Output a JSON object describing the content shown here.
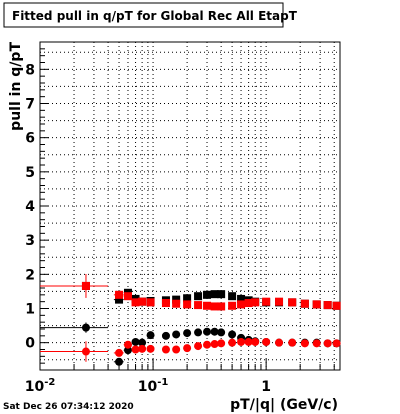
{
  "title": "Fitted pull in q/pT for Global Rec All EtapT",
  "timestamp": "Sat Dec 26 07:34:12 2020",
  "colors": {
    "black_series": "#000000",
    "red_series": "#ff0000",
    "grid": "#000000"
  },
  "chart_data": {
    "type": "scatter",
    "title": "Fitted pull in q/pT for Global Rec All EtapT",
    "xlabel": "pT/|q| (GeV/c)",
    "ylabel": "pull in q/pT",
    "x_scale": "log",
    "xlim": [
      0.01,
      4.5
    ],
    "ylim": [
      -0.8,
      8.8
    ],
    "grid": true,
    "x_ticks": [
      {
        "value": 0.01,
        "label": "10",
        "sup": "-2"
      },
      {
        "value": 0.1,
        "label": "10",
        "sup": "-1"
      },
      {
        "value": 1,
        "label": "1",
        "sup": ""
      }
    ],
    "y_ticks": [
      {
        "value": 0,
        "label": "0"
      },
      {
        "value": 1,
        "label": "1"
      },
      {
        "value": 2,
        "label": "2"
      },
      {
        "value": 3,
        "label": "3"
      },
      {
        "value": 4,
        "label": "4"
      },
      {
        "value": 5,
        "label": "5"
      },
      {
        "value": 6,
        "label": "6"
      },
      {
        "value": 7,
        "label": "7"
      },
      {
        "value": 8,
        "label": "8"
      }
    ],
    "series": [
      {
        "color": "#000000",
        "marker": "square",
        "points": [
          {
            "x": 0.0255,
            "xlo": 0.01,
            "xhi": 0.04,
            "y": 1.66,
            "yerr": 0.1
          },
          {
            "x": 0.05,
            "xlo": 0.045,
            "xhi": 0.055,
            "y": 1.26,
            "yerr": 0.07
          },
          {
            "x": 0.06,
            "xlo": 0.055,
            "xhi": 0.065,
            "y": 1.46,
            "yerr": 0.06
          },
          {
            "x": 0.07,
            "xlo": 0.065,
            "xhi": 0.075,
            "y": 1.28,
            "yerr": 0.05
          },
          {
            "x": 0.08,
            "xlo": 0.075,
            "xhi": 0.085,
            "y": 1.2,
            "yerr": 0.05
          },
          {
            "x": 0.095,
            "xlo": 0.09,
            "xhi": 0.1,
            "y": 1.22,
            "yerr": 0.04
          },
          {
            "x": 0.13,
            "xlo": 0.12,
            "xhi": 0.14,
            "y": 1.24,
            "yerr": 0.03
          },
          {
            "x": 0.16,
            "xlo": 0.15,
            "xhi": 0.17,
            "y": 1.26,
            "yerr": 0.03
          },
          {
            "x": 0.2,
            "xlo": 0.19,
            "xhi": 0.21,
            "y": 1.3,
            "yerr": 0.03
          },
          {
            "x": 0.25,
            "xlo": 0.24,
            "xhi": 0.26,
            "y": 1.36,
            "yerr": 0.03
          },
          {
            "x": 0.3,
            "xlo": 0.29,
            "xhi": 0.31,
            "y": 1.4,
            "yerr": 0.03
          },
          {
            "x": 0.35,
            "xlo": 0.34,
            "xhi": 0.36,
            "y": 1.42,
            "yerr": 0.03
          },
          {
            "x": 0.4,
            "xlo": 0.39,
            "xhi": 0.41,
            "y": 1.42,
            "yerr": 0.03
          },
          {
            "x": 0.5,
            "xlo": 0.48,
            "xhi": 0.52,
            "y": 1.36,
            "yerr": 0.03
          },
          {
            "x": 0.6,
            "xlo": 0.58,
            "xhi": 0.62,
            "y": 1.28,
            "yerr": 0.03
          },
          {
            "x": 0.7,
            "xlo": 0.68,
            "xhi": 0.72,
            "y": 1.24,
            "yerr": 0.03
          },
          {
            "x": 0.8,
            "xlo": 0.78,
            "xhi": 0.82,
            "y": 1.2,
            "yerr": 0.03
          },
          {
            "x": 1.0,
            "xlo": 0.96,
            "xhi": 1.04,
            "y": 1.18,
            "yerr": 0.03
          },
          {
            "x": 1.3,
            "xlo": 1.25,
            "xhi": 1.35,
            "y": 1.18,
            "yerr": 0.03
          },
          {
            "x": 1.7,
            "xlo": 1.6,
            "xhi": 1.8,
            "y": 1.18,
            "yerr": 0.03
          },
          {
            "x": 2.2,
            "xlo": 2.1,
            "xhi": 2.3,
            "y": 1.14,
            "yerr": 0.03
          },
          {
            "x": 2.8,
            "xlo": 2.7,
            "xhi": 2.9,
            "y": 1.12,
            "yerr": 0.03
          },
          {
            "x": 3.5,
            "xlo": 3.4,
            "xhi": 3.6,
            "y": 1.1,
            "yerr": 0.03
          },
          {
            "x": 4.2,
            "xlo": 4.0,
            "xhi": 4.4,
            "y": 1.08,
            "yerr": 0.03
          }
        ]
      },
      {
        "color": "#ff0000",
        "marker": "square",
        "points": [
          {
            "x": 0.0255,
            "xlo": 0.01,
            "xhi": 0.04,
            "y": 1.66,
            "yerr": 0.35
          },
          {
            "x": 0.05,
            "xlo": 0.045,
            "xhi": 0.055,
            "y": 1.4,
            "yerr": 0.08
          },
          {
            "x": 0.06,
            "xlo": 0.055,
            "xhi": 0.065,
            "y": 1.36,
            "yerr": 0.07
          },
          {
            "x": 0.07,
            "xlo": 0.065,
            "xhi": 0.075,
            "y": 1.18,
            "yerr": 0.06
          },
          {
            "x": 0.08,
            "xlo": 0.075,
            "xhi": 0.085,
            "y": 1.2,
            "yerr": 0.05
          },
          {
            "x": 0.095,
            "xlo": 0.09,
            "xhi": 0.1,
            "y": 1.18,
            "yerr": 0.04
          },
          {
            "x": 0.13,
            "xlo": 0.12,
            "xhi": 0.14,
            "y": 1.16,
            "yerr": 0.03
          },
          {
            "x": 0.16,
            "xlo": 0.15,
            "xhi": 0.17,
            "y": 1.14,
            "yerr": 0.03
          },
          {
            "x": 0.2,
            "xlo": 0.19,
            "xhi": 0.21,
            "y": 1.12,
            "yerr": 0.03
          },
          {
            "x": 0.25,
            "xlo": 0.24,
            "xhi": 0.26,
            "y": 1.1,
            "yerr": 0.03
          },
          {
            "x": 0.3,
            "xlo": 0.29,
            "xhi": 0.31,
            "y": 1.08,
            "yerr": 0.03
          },
          {
            "x": 0.35,
            "xlo": 0.34,
            "xhi": 0.36,
            "y": 1.06,
            "yerr": 0.03
          },
          {
            "x": 0.4,
            "xlo": 0.39,
            "xhi": 0.41,
            "y": 1.06,
            "yerr": 0.03
          },
          {
            "x": 0.5,
            "xlo": 0.48,
            "xhi": 0.52,
            "y": 1.08,
            "yerr": 0.03
          },
          {
            "x": 0.6,
            "xlo": 0.58,
            "xhi": 0.62,
            "y": 1.12,
            "yerr": 0.03
          },
          {
            "x": 0.7,
            "xlo": 0.68,
            "xhi": 0.72,
            "y": 1.16,
            "yerr": 0.03
          },
          {
            "x": 0.8,
            "xlo": 0.78,
            "xhi": 0.82,
            "y": 1.18,
            "yerr": 0.03
          },
          {
            "x": 1.0,
            "xlo": 0.96,
            "xhi": 1.04,
            "y": 1.2,
            "yerr": 0.03
          },
          {
            "x": 1.3,
            "xlo": 1.25,
            "xhi": 1.35,
            "y": 1.2,
            "yerr": 0.03
          },
          {
            "x": 1.7,
            "xlo": 1.6,
            "xhi": 1.8,
            "y": 1.18,
            "yerr": 0.03
          },
          {
            "x": 2.2,
            "xlo": 2.1,
            "xhi": 2.3,
            "y": 1.14,
            "yerr": 0.03
          },
          {
            "x": 2.8,
            "xlo": 2.7,
            "xhi": 2.9,
            "y": 1.12,
            "yerr": 0.03
          },
          {
            "x": 3.5,
            "xlo": 3.4,
            "xhi": 3.6,
            "y": 1.1,
            "yerr": 0.03
          },
          {
            "x": 4.2,
            "xlo": 4.0,
            "xhi": 4.4,
            "y": 1.08,
            "yerr": 0.03
          }
        ]
      },
      {
        "color": "#000000",
        "marker": "circle",
        "points": [
          {
            "x": 0.0255,
            "xlo": 0.01,
            "xhi": 0.04,
            "y": 0.44,
            "yerr": 0.15
          },
          {
            "x": 0.05,
            "xlo": 0.045,
            "xhi": 0.055,
            "y": -0.56,
            "yerr": 0.1
          },
          {
            "x": 0.06,
            "xlo": 0.055,
            "xhi": 0.065,
            "y": -0.22,
            "yerr": 0.08
          },
          {
            "x": 0.07,
            "xlo": 0.065,
            "xhi": 0.075,
            "y": 0.02,
            "yerr": 0.06
          },
          {
            "x": 0.08,
            "xlo": 0.075,
            "xhi": 0.085,
            "y": 0.0,
            "yerr": 0.05
          },
          {
            "x": 0.095,
            "xlo": 0.09,
            "xhi": 0.1,
            "y": 0.22,
            "yerr": 0.04
          },
          {
            "x": 0.13,
            "xlo": 0.12,
            "xhi": 0.14,
            "y": 0.2,
            "yerr": 0.03
          },
          {
            "x": 0.16,
            "xlo": 0.15,
            "xhi": 0.17,
            "y": 0.24,
            "yerr": 0.03
          },
          {
            "x": 0.2,
            "xlo": 0.19,
            "xhi": 0.21,
            "y": 0.28,
            "yerr": 0.03
          },
          {
            "x": 0.25,
            "xlo": 0.24,
            "xhi": 0.26,
            "y": 0.3,
            "yerr": 0.03
          },
          {
            "x": 0.3,
            "xlo": 0.29,
            "xhi": 0.31,
            "y": 0.32,
            "yerr": 0.03
          },
          {
            "x": 0.35,
            "xlo": 0.34,
            "xhi": 0.36,
            "y": 0.32,
            "yerr": 0.03
          },
          {
            "x": 0.4,
            "xlo": 0.39,
            "xhi": 0.41,
            "y": 0.3,
            "yerr": 0.03
          },
          {
            "x": 0.5,
            "xlo": 0.48,
            "xhi": 0.52,
            "y": 0.24,
            "yerr": 0.03
          },
          {
            "x": 0.6,
            "xlo": 0.58,
            "xhi": 0.62,
            "y": 0.14,
            "yerr": 0.03
          },
          {
            "x": 0.7,
            "xlo": 0.68,
            "xhi": 0.72,
            "y": 0.08,
            "yerr": 0.03
          },
          {
            "x": 0.8,
            "xlo": 0.78,
            "xhi": 0.82,
            "y": 0.04,
            "yerr": 0.03
          },
          {
            "x": 1.0,
            "xlo": 0.96,
            "xhi": 1.04,
            "y": 0.02,
            "yerr": 0.03
          },
          {
            "x": 1.3,
            "xlo": 1.25,
            "xhi": 1.35,
            "y": 0.0,
            "yerr": 0.03
          },
          {
            "x": 1.7,
            "xlo": 1.6,
            "xhi": 1.8,
            "y": 0.0,
            "yerr": 0.03
          },
          {
            "x": 2.2,
            "xlo": 2.1,
            "xhi": 2.3,
            "y": 0.0,
            "yerr": 0.03
          },
          {
            "x": 2.8,
            "xlo": 2.7,
            "xhi": 2.9,
            "y": 0.0,
            "yerr": 0.03
          },
          {
            "x": 3.5,
            "xlo": 3.4,
            "xhi": 3.6,
            "y": -0.02,
            "yerr": 0.03
          },
          {
            "x": 4.2,
            "xlo": 4.0,
            "xhi": 4.4,
            "y": -0.02,
            "yerr": 0.03
          }
        ]
      },
      {
        "color": "#ff0000",
        "marker": "circle",
        "points": [
          {
            "x": 0.0255,
            "xlo": 0.01,
            "xhi": 0.04,
            "y": -0.26,
            "yerr": 0.3
          },
          {
            "x": 0.05,
            "xlo": 0.045,
            "xhi": 0.055,
            "y": -0.3,
            "yerr": 0.08
          },
          {
            "x": 0.06,
            "xlo": 0.055,
            "xhi": 0.065,
            "y": -0.06,
            "yerr": 0.07
          },
          {
            "x": 0.07,
            "xlo": 0.065,
            "xhi": 0.075,
            "y": -0.2,
            "yerr": 0.06
          },
          {
            "x": 0.08,
            "xlo": 0.075,
            "xhi": 0.085,
            "y": -0.18,
            "yerr": 0.05
          },
          {
            "x": 0.095,
            "xlo": 0.09,
            "xhi": 0.1,
            "y": -0.18,
            "yerr": 0.04
          },
          {
            "x": 0.13,
            "xlo": 0.12,
            "xhi": 0.14,
            "y": -0.2,
            "yerr": 0.03
          },
          {
            "x": 0.16,
            "xlo": 0.15,
            "xhi": 0.17,
            "y": -0.2,
            "yerr": 0.03
          },
          {
            "x": 0.2,
            "xlo": 0.19,
            "xhi": 0.21,
            "y": -0.16,
            "yerr": 0.03
          },
          {
            "x": 0.25,
            "xlo": 0.24,
            "xhi": 0.26,
            "y": -0.1,
            "yerr": 0.03
          },
          {
            "x": 0.3,
            "xlo": 0.29,
            "xhi": 0.31,
            "y": -0.06,
            "yerr": 0.03
          },
          {
            "x": 0.35,
            "xlo": 0.34,
            "xhi": 0.36,
            "y": -0.04,
            "yerr": 0.03
          },
          {
            "x": 0.4,
            "xlo": 0.39,
            "xhi": 0.41,
            "y": -0.02,
            "yerr": 0.03
          },
          {
            "x": 0.5,
            "xlo": 0.48,
            "xhi": 0.52,
            "y": 0.0,
            "yerr": 0.03
          },
          {
            "x": 0.6,
            "xlo": 0.58,
            "xhi": 0.62,
            "y": 0.02,
            "yerr": 0.03
          },
          {
            "x": 0.7,
            "xlo": 0.68,
            "xhi": 0.72,
            "y": 0.02,
            "yerr": 0.03
          },
          {
            "x": 0.8,
            "xlo": 0.78,
            "xhi": 0.82,
            "y": 0.02,
            "yerr": 0.03
          },
          {
            "x": 1.0,
            "xlo": 0.96,
            "xhi": 1.04,
            "y": 0.02,
            "yerr": 0.03
          },
          {
            "x": 1.3,
            "xlo": 1.25,
            "xhi": 1.35,
            "y": 0.0,
            "yerr": 0.03
          },
          {
            "x": 1.7,
            "xlo": 1.6,
            "xhi": 1.8,
            "y": 0.0,
            "yerr": 0.03
          },
          {
            "x": 2.2,
            "xlo": 2.1,
            "xhi": 2.3,
            "y": -0.02,
            "yerr": 0.03
          },
          {
            "x": 2.8,
            "xlo": 2.7,
            "xhi": 2.9,
            "y": -0.02,
            "yerr": 0.03
          },
          {
            "x": 3.5,
            "xlo": 3.4,
            "xhi": 3.6,
            "y": -0.02,
            "yerr": 0.03
          },
          {
            "x": 4.2,
            "xlo": 4.0,
            "xhi": 4.4,
            "y": -0.02,
            "yerr": 0.03
          }
        ]
      }
    ]
  }
}
